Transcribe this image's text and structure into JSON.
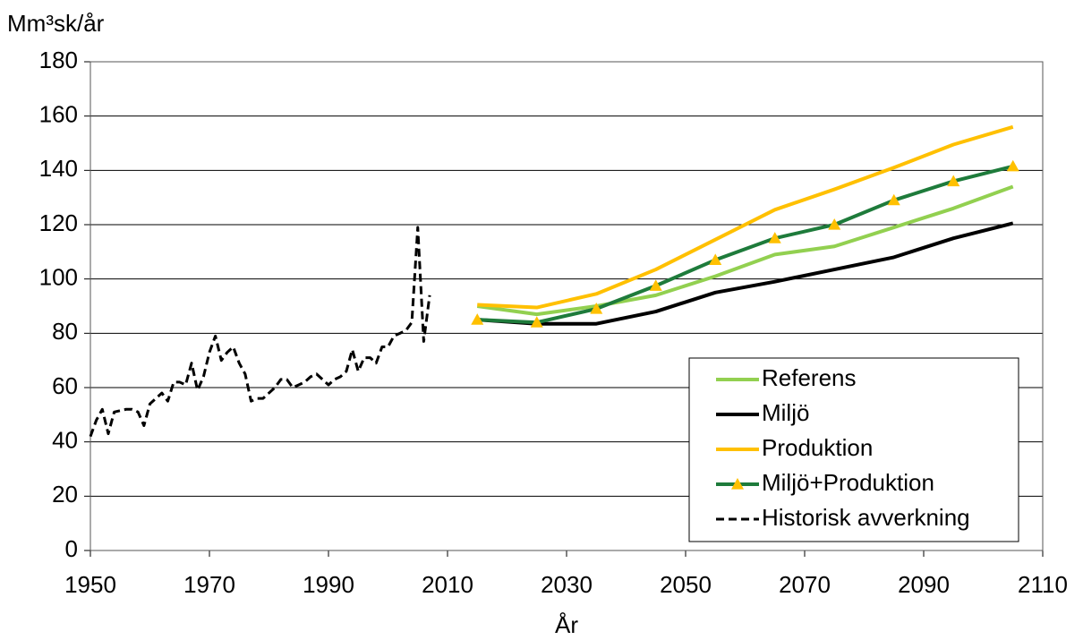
{
  "chart_data": {
    "type": "line",
    "ylabel": "Mm³sk/år",
    "xlabel": "År",
    "xlim": [
      1950,
      2110
    ],
    "xticks": [
      1950,
      1970,
      1990,
      2010,
      2030,
      2050,
      2070,
      2090,
      2110
    ],
    "ylim": [
      0,
      180
    ],
    "yticks": [
      0,
      20,
      40,
      60,
      80,
      100,
      120,
      140,
      160,
      180
    ],
    "grid": true,
    "legend": "lower right",
    "series": [
      {
        "name": "Referens",
        "color": "#92d050",
        "x": [
          2015,
          2025,
          2035,
          2045,
          2055,
          2065,
          2075,
          2085,
          2095,
          2105
        ],
        "values": [
          90,
          87,
          90,
          94,
          101,
          109,
          112,
          119,
          126,
          134
        ]
      },
      {
        "name": "Miljö",
        "color": "#000000",
        "x": [
          2015,
          2025,
          2035,
          2045,
          2055,
          2065,
          2075,
          2085,
          2095,
          2105
        ],
        "values": [
          85,
          83.5,
          83.5,
          88,
          95,
          99,
          103.5,
          108,
          115,
          120.5
        ]
      },
      {
        "name": "Produktion",
        "color": "#ffc000",
        "x": [
          2015,
          2025,
          2035,
          2045,
          2055,
          2065,
          2075,
          2085,
          2095,
          2105
        ],
        "values": [
          90.5,
          89.5,
          94.5,
          103.5,
          114.5,
          125.5,
          133,
          141,
          149.5,
          156
        ]
      },
      {
        "name": "Miljö+Produktion",
        "color": "#1e7b3b",
        "marker": "triangle",
        "marker_color": "#ffc000",
        "x": [
          2015,
          2025,
          2035,
          2045,
          2055,
          2065,
          2075,
          2085,
          2095,
          2105
        ],
        "values": [
          85,
          84,
          89,
          97.5,
          107,
          115,
          120,
          129,
          136,
          141.5
        ]
      },
      {
        "name": "Historisk avverkning",
        "color": "#000000",
        "linestyle": "dashed",
        "x": [
          1950,
          1951,
          1952,
          1953,
          1954,
          1955,
          1956,
          1957,
          1958,
          1959,
          1960,
          1961,
          1962,
          1963,
          1964,
          1965,
          1966,
          1967,
          1968,
          1969,
          1970,
          1971,
          1972,
          1973,
          1974,
          1975,
          1976,
          1977,
          1978,
          1979,
          1980,
          1981,
          1982,
          1983,
          1984,
          1985,
          1986,
          1987,
          1988,
          1989,
          1990,
          1991,
          1992,
          1993,
          1994,
          1995,
          1996,
          1997,
          1998,
          1999,
          2000,
          2001,
          2002,
          2003,
          2004,
          2005,
          2006,
          2007
        ],
        "values": [
          42,
          48,
          52,
          43,
          51,
          51.5,
          52,
          52,
          51,
          46,
          54,
          56,
          58,
          55,
          62,
          62,
          61,
          69,
          59,
          64,
          73,
          79,
          70,
          73,
          75,
          69,
          65,
          55,
          56,
          56,
          58,
          60,
          63,
          63,
          60,
          61,
          62,
          64,
          65,
          63,
          61,
          63,
          64,
          66,
          74,
          66,
          71,
          71,
          69,
          75,
          75,
          79,
          80,
          81,
          84,
          119,
          77,
          94
        ]
      }
    ]
  }
}
